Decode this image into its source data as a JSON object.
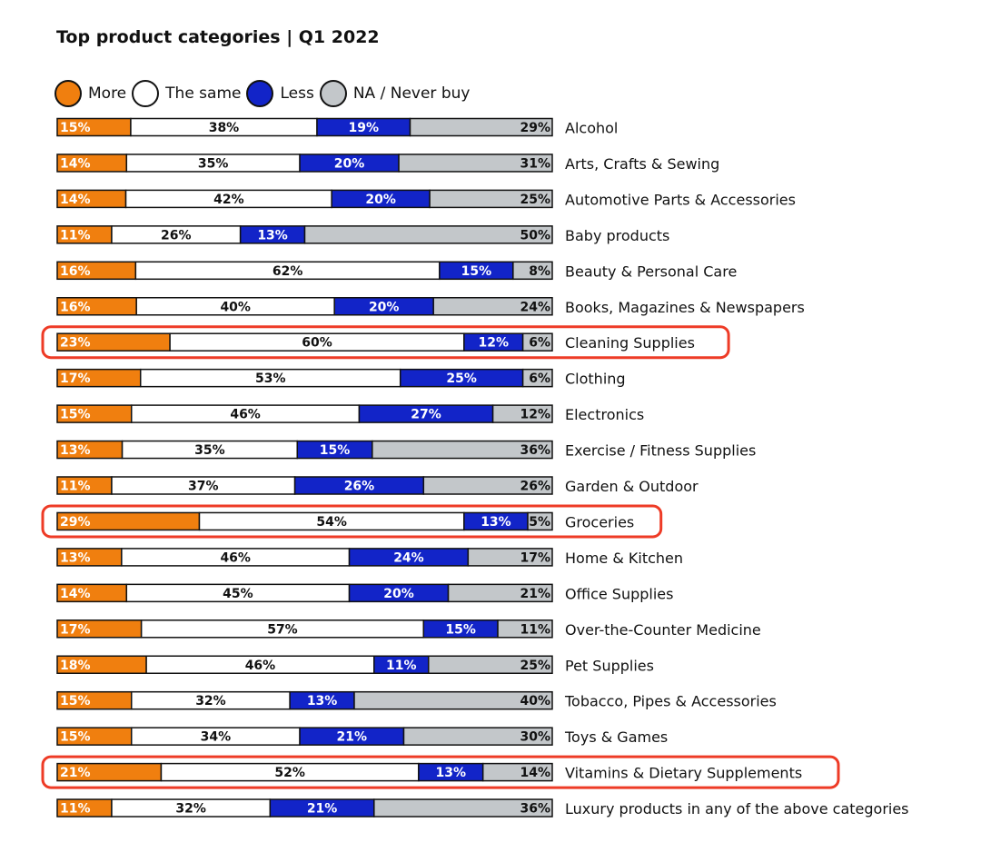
{
  "title": "Top product categories | Q1 2022",
  "chart_data": {
    "type": "bar",
    "orientation": "horizontal",
    "stacked": true,
    "title": "Top product categories | Q1 2022",
    "legend_position": "top-left",
    "series": [
      {
        "name": "More",
        "color": "#f07f0f",
        "text_color": "#ffffff",
        "values": [
          15,
          14,
          14,
          11,
          16,
          16,
          23,
          17,
          15,
          13,
          11,
          29,
          13,
          14,
          17,
          18,
          15,
          15,
          21,
          11
        ]
      },
      {
        "name": "The same",
        "color": "#ffffff",
        "text_color": "#111111",
        "values": [
          38,
          35,
          42,
          26,
          62,
          40,
          60,
          53,
          46,
          35,
          37,
          54,
          46,
          45,
          57,
          46,
          32,
          34,
          52,
          32
        ]
      },
      {
        "name": "Less",
        "color": "#1224c8",
        "text_color": "#ffffff",
        "values": [
          19,
          20,
          20,
          13,
          15,
          20,
          12,
          25,
          27,
          15,
          26,
          13,
          24,
          20,
          15,
          11,
          13,
          21,
          13,
          21
        ]
      },
      {
        "name": "NA / Never buy",
        "color": "#c3c7ca",
        "text_color": "#111111",
        "values": [
          29,
          31,
          25,
          50,
          8,
          24,
          6,
          6,
          12,
          36,
          26,
          5,
          17,
          21,
          11,
          25,
          40,
          30,
          14,
          36
        ]
      }
    ],
    "categories": [
      "Alcohol",
      "Arts, Crafts & Sewing",
      "Automotive Parts & Accessories",
      "Baby products",
      "Beauty & Personal Care",
      "Books, Magazines & Newspapers",
      "Cleaning Supplies",
      "Clothing",
      "Electronics",
      "Exercise / Fitness Supplies",
      "Garden & Outdoor",
      "Groceries",
      "Home & Kitchen",
      "Office Supplies",
      "Over-the-Counter Medicine",
      "Pet Supplies",
      "Tobacco, Pipes & Accessories",
      "Toys & Games",
      "Vitamins & Dietary Supplements",
      "Luxury products in any of the above categories"
    ],
    "highlighted": [
      "Cleaning Supplies",
      "Groceries",
      "Vitamins & Dietary Supplements"
    ],
    "highlight_color": "#ee3b26",
    "value_suffix": "%"
  }
}
